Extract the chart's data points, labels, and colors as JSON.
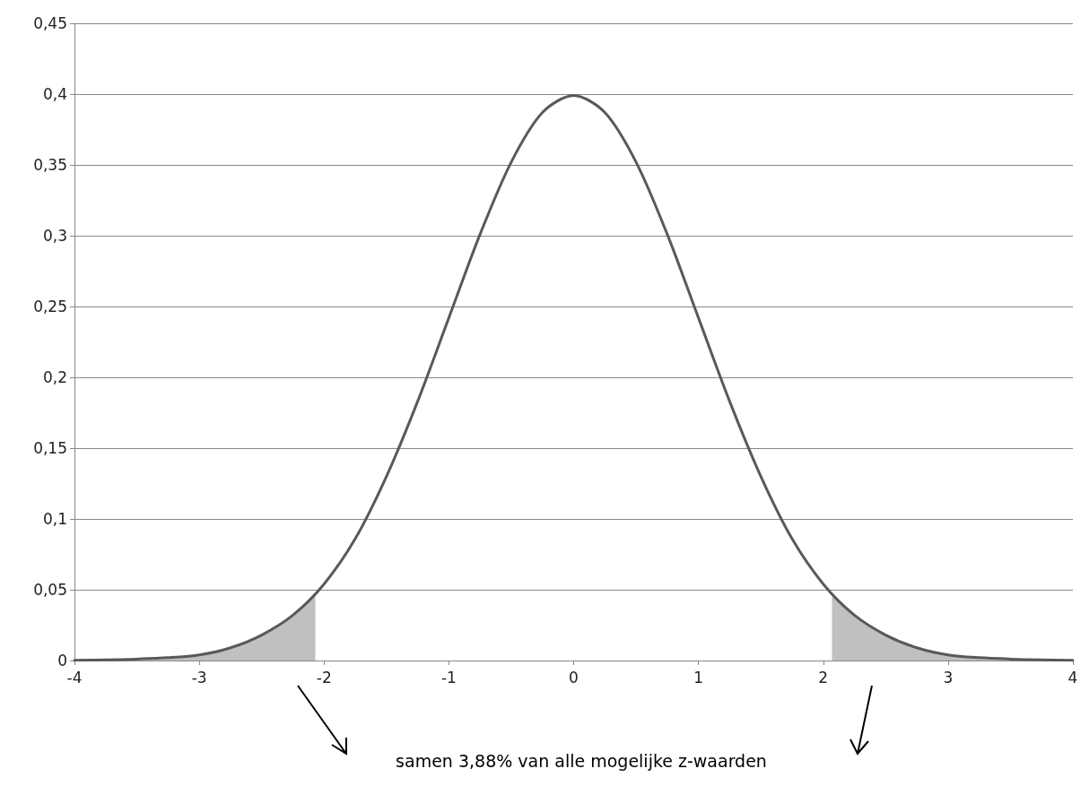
{
  "chart_data": {
    "type": "line",
    "series": [
      {
        "color": "#595959",
        "x": [
          -4,
          -3.75,
          -3.5,
          -3.25,
          -3,
          -2.75,
          -2.5,
          -2.25,
          -2,
          -1.75,
          -1.5,
          -1.25,
          -1,
          -0.75,
          -0.5,
          -0.25,
          0,
          0.25,
          0.5,
          0.75,
          1,
          1.25,
          1.5,
          1.75,
          2,
          2.25,
          2.5,
          2.75,
          3,
          3.25,
          3.5,
          3.75,
          4
        ],
        "values": [
          0.0001,
          0.0004,
          0.001,
          0.002,
          0.004,
          0.009,
          0.018,
          0.032,
          0.054,
          0.086,
          0.13,
          0.183,
          0.242,
          0.301,
          0.352,
          0.387,
          0.399,
          0.387,
          0.352,
          0.301,
          0.242,
          0.183,
          0.13,
          0.086,
          0.054,
          0.032,
          0.018,
          0.009,
          0.004,
          0.002,
          0.001,
          0.0004,
          0.0001
        ]
      },
      {
        "type": "area",
        "color": "#c0c0c0",
        "x": [
          -4,
          -3.5,
          -3,
          -2.75,
          -2.5,
          -2.25,
          -2.07
        ],
        "values": [
          0.0001,
          0.001,
          0.004,
          0.009,
          0.018,
          0.032,
          0.047
        ]
      },
      {
        "type": "area",
        "color": "#c0c0c0",
        "x": [
          2.07,
          2.25,
          2.5,
          2.75,
          3,
          3.5,
          4
        ],
        "values": [
          0.047,
          0.032,
          0.018,
          0.009,
          0.004,
          0.001,
          0.0001
        ]
      }
    ],
    "xlim": [
      -4,
      4
    ],
    "xticks": [
      -4,
      -3,
      -2,
      -1,
      0,
      1,
      2,
      3,
      4
    ],
    "ylim": [
      0,
      0.45
    ],
    "yticks": [
      0,
      {
        "value": 0.05,
        "label": "0,05"
      },
      {
        "value": 0.1,
        "label": "0,1"
      },
      {
        "value": 0.15,
        "label": "0,15"
      },
      {
        "value": 0.2,
        "label": "0,2"
      },
      {
        "value": 0.25,
        "label": "0,25"
      },
      {
        "value": 0.3,
        "label": "0,3"
      },
      {
        "value": 0.35,
        "label": "0,35"
      },
      {
        "value": 0.4,
        "label": "0,4"
      },
      {
        "value": 0.45,
        "label": "0,45"
      }
    ],
    "grid": "y",
    "marker": "none",
    "annotations": [
      "samen 3,88% van alle mogelijke z-waarden"
    ]
  }
}
